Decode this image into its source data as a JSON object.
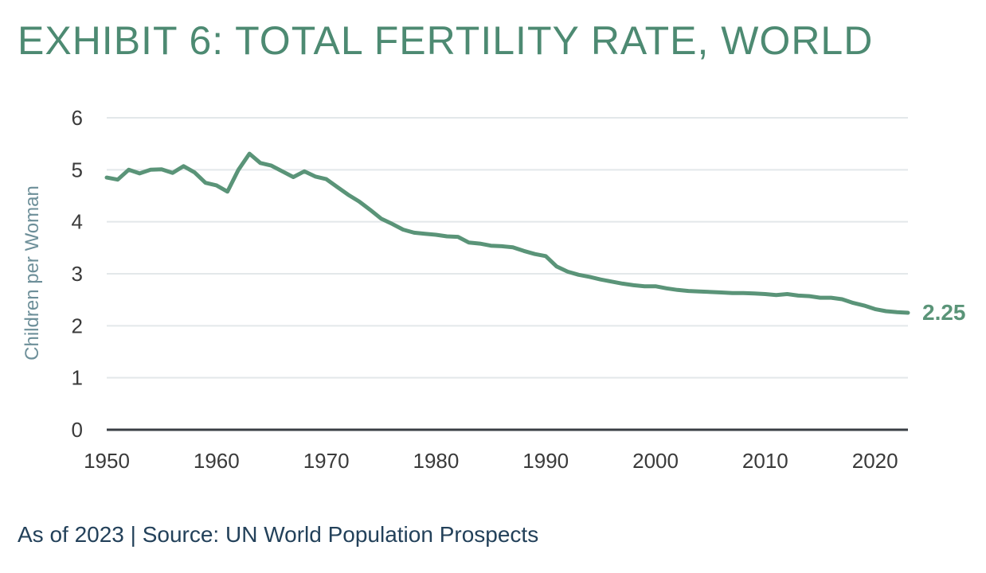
{
  "title": "EXHIBIT 6: TOTAL FERTILITY RATE, WORLD",
  "footer": "As of 2023 | Source: UN World Population Prospects",
  "colors": {
    "line": "#5a9478",
    "grid": "#e3e8ea",
    "axis": "#3a3f44",
    "title": "#4d8a72"
  },
  "chart_data": {
    "type": "line",
    "title": "EXHIBIT 6: TOTAL FERTILITY RATE, WORLD",
    "xlabel": "",
    "ylabel": "Children per Woman",
    "xlim": [
      1950,
      2023
    ],
    "ylim": [
      0,
      6
    ],
    "xticks": [
      1950,
      1960,
      1970,
      1980,
      1990,
      2000,
      2010,
      2020
    ],
    "yticks": [
      0,
      1,
      2,
      3,
      4,
      5,
      6
    ],
    "grid": true,
    "end_label": "2.25",
    "series": [
      {
        "name": "Total fertility rate",
        "x": [
          1950,
          1951,
          1952,
          1953,
          1954,
          1955,
          1956,
          1957,
          1958,
          1959,
          1960,
          1961,
          1962,
          1963,
          1964,
          1965,
          1966,
          1967,
          1968,
          1969,
          1970,
          1971,
          1972,
          1973,
          1974,
          1975,
          1976,
          1977,
          1978,
          1979,
          1980,
          1981,
          1982,
          1983,
          1984,
          1985,
          1986,
          1987,
          1988,
          1989,
          1990,
          1991,
          1992,
          1993,
          1994,
          1995,
          1996,
          1997,
          1998,
          1999,
          2000,
          2001,
          2002,
          2003,
          2004,
          2005,
          2006,
          2007,
          2008,
          2009,
          2010,
          2011,
          2012,
          2013,
          2014,
          2015,
          2016,
          2017,
          2018,
          2019,
          2020,
          2021,
          2022,
          2023
        ],
        "values": [
          4.85,
          4.81,
          5.0,
          4.93,
          5.0,
          5.01,
          4.94,
          5.07,
          4.95,
          4.75,
          4.7,
          4.58,
          5.0,
          5.31,
          5.13,
          5.08,
          4.97,
          4.86,
          4.97,
          4.87,
          4.82,
          4.67,
          4.52,
          4.39,
          4.23,
          4.06,
          3.96,
          3.85,
          3.79,
          3.77,
          3.75,
          3.72,
          3.71,
          3.6,
          3.58,
          3.54,
          3.53,
          3.51,
          3.44,
          3.38,
          3.34,
          3.14,
          3.04,
          2.98,
          2.94,
          2.89,
          2.85,
          2.81,
          2.78,
          2.76,
          2.76,
          2.72,
          2.69,
          2.67,
          2.66,
          2.65,
          2.64,
          2.63,
          2.63,
          2.62,
          2.61,
          2.59,
          2.61,
          2.58,
          2.57,
          2.54,
          2.54,
          2.51,
          2.44,
          2.39,
          2.32,
          2.28,
          2.26,
          2.25
        ]
      }
    ]
  }
}
